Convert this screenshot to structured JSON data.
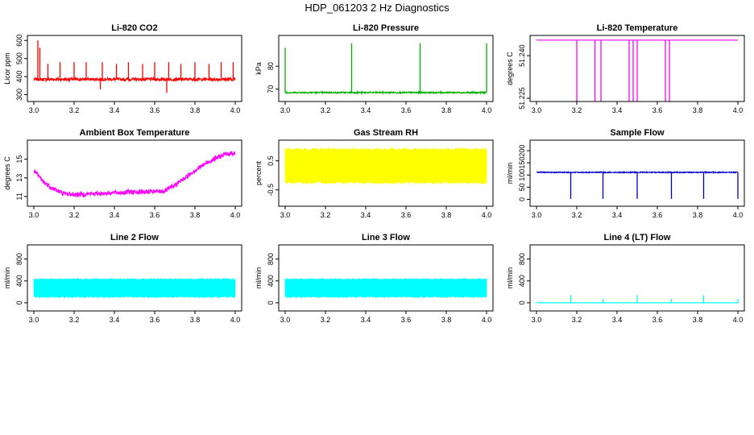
{
  "figure": {
    "title": "HDP_061203  2 Hz Diagnostics"
  },
  "chart_data": [
    {
      "id": "co2",
      "type": "line",
      "title": "Li-820 CO2",
      "ylabel": "Licor ppm",
      "color": "#ff0000",
      "xlim": [
        3.0,
        4.0
      ],
      "ylim": [
        280,
        610
      ],
      "xticks": [
        "3.0",
        "3.2",
        "3.4",
        "3.6",
        "3.8",
        "4.0"
      ],
      "yticks": [
        "300",
        "400",
        "500",
        "600"
      ],
      "baseline": 385,
      "noise": 8,
      "spikes": [
        [
          3.02,
          600
        ],
        [
          3.03,
          560
        ],
        [
          3.07,
          470
        ],
        [
          3.13,
          480
        ],
        [
          3.2,
          480
        ],
        [
          3.26,
          480
        ],
        [
          3.33,
          330
        ],
        [
          3.34,
          480
        ],
        [
          3.41,
          470
        ],
        [
          3.47,
          480
        ],
        [
          3.54,
          470
        ],
        [
          3.6,
          480
        ],
        [
          3.66,
          310
        ],
        [
          3.67,
          480
        ],
        [
          3.73,
          470
        ],
        [
          3.8,
          480
        ],
        [
          3.87,
          470
        ],
        [
          3.93,
          480
        ],
        [
          3.99,
          480
        ]
      ]
    },
    {
      "id": "pressure",
      "type": "line",
      "title": "Li-820 Pressure",
      "ylabel": "kPa",
      "color": "#00b000",
      "xlim": [
        3.0,
        4.0
      ],
      "ylim": [
        66,
        92
      ],
      "xticks": [
        "3.0",
        "3.2",
        "3.4",
        "3.6",
        "3.8",
        "4.0"
      ],
      "yticks": [
        "70",
        "80"
      ],
      "baseline": 68.5,
      "noise": 0.3,
      "spikes": [
        [
          3.0,
          88
        ],
        [
          3.33,
          90
        ],
        [
          3.67,
          90
        ],
        [
          4.0,
          90
        ]
      ]
    },
    {
      "id": "temperature",
      "type": "line",
      "title": "Li-820 Temperature",
      "ylabel": "degrees C",
      "color": "#ff00ff",
      "xlim": [
        3.0,
        4.0
      ],
      "ylim": [
        51.225,
        51.246
      ],
      "xticks": [
        "3.0",
        "3.2",
        "3.4",
        "3.6",
        "3.8",
        "4.0"
      ],
      "yticks": [
        "51.225",
        "51.240"
      ],
      "baseline": 51.2455,
      "noise": 0,
      "spikes": [
        [
          3.2,
          51.224
        ],
        [
          3.29,
          51.224
        ],
        [
          3.32,
          51.224
        ],
        [
          3.46,
          51.224
        ],
        [
          3.48,
          51.224
        ],
        [
          3.5,
          51.224
        ],
        [
          3.64,
          51.224
        ],
        [
          3.66,
          51.224
        ]
      ]
    },
    {
      "id": "ambient",
      "type": "line",
      "title": "Ambient Box Temperature",
      "ylabel": "degrees C",
      "color": "#ff00ff",
      "xlim": [
        3.0,
        4.0
      ],
      "ylim": [
        10.3,
        16.7
      ],
      "xticks": [
        "3.0",
        "3.2",
        "3.4",
        "3.6",
        "3.8",
        "4.0"
      ],
      "yticks": [
        "11",
        "13",
        "15"
      ],
      "profile": [
        [
          3.0,
          13.8
        ],
        [
          3.05,
          12.5
        ],
        [
          3.1,
          11.8
        ],
        [
          3.15,
          11.3
        ],
        [
          3.2,
          11.2
        ],
        [
          3.3,
          11.3
        ],
        [
          3.4,
          11.4
        ],
        [
          3.5,
          11.5
        ],
        [
          3.6,
          11.5
        ],
        [
          3.65,
          11.6
        ],
        [
          3.7,
          12.2
        ],
        [
          3.75,
          13.0
        ],
        [
          3.8,
          13.8
        ],
        [
          3.85,
          14.5
        ],
        [
          3.9,
          15.1
        ],
        [
          3.95,
          15.5
        ],
        [
          4.0,
          15.7
        ]
      ],
      "noise": 0.5
    },
    {
      "id": "rh",
      "type": "line",
      "title": "Gas Stream RH",
      "ylabel": "percent",
      "color": "#ffff00",
      "xlim": [
        3.0,
        4.0
      ],
      "ylim": [
        -0.95,
        1.1
      ],
      "xticks": [
        "3.0",
        "3.2",
        "3.4",
        "3.6",
        "3.8",
        "4.0"
      ],
      "yticks": [
        "-0.5",
        "0.5"
      ],
      "baseline": 0.35,
      "noise": 0.45,
      "band": [
        -0.3,
        0.95
      ]
    },
    {
      "id": "sample",
      "type": "line",
      "title": "Sample Flow",
      "ylabel": "ml/min",
      "color": "#0000cc",
      "xlim": [
        3.0,
        4.0
      ],
      "ylim": [
        -15,
        230
      ],
      "xticks": [
        "3.0",
        "3.2",
        "3.4",
        "3.6",
        "3.8",
        "4.0"
      ],
      "yticks": [
        "0",
        "50",
        "100",
        "150",
        "200"
      ],
      "baseline": 111,
      "noise": 2,
      "spikes": [
        [
          3.17,
          2
        ],
        [
          3.33,
          2
        ],
        [
          3.5,
          2
        ],
        [
          3.67,
          2
        ],
        [
          3.83,
          2
        ],
        [
          4.0,
          2
        ]
      ]
    },
    {
      "id": "line2",
      "type": "line",
      "title": "Line 2 Flow",
      "ylabel": "ml/min",
      "color": "#00ffff",
      "xlim": [
        3.0,
        4.0
      ],
      "ylim": [
        -90,
        1000
      ],
      "xticks": [
        "3.0",
        "3.2",
        "3.4",
        "3.6",
        "3.8",
        "4.0"
      ],
      "yticks": [
        "0",
        "400",
        "800"
      ],
      "band": [
        90,
        450
      ]
    },
    {
      "id": "line3",
      "type": "line",
      "title": "Line 3 Flow",
      "ylabel": "ml/min",
      "color": "#00ffff",
      "xlim": [
        3.0,
        4.0
      ],
      "ylim": [
        -90,
        1000
      ],
      "xticks": [
        "3.0",
        "3.2",
        "3.4",
        "3.6",
        "3.8",
        "4.0"
      ],
      "yticks": [
        "0",
        "400",
        "800"
      ],
      "band": [
        90,
        450
      ]
    },
    {
      "id": "line4",
      "type": "line",
      "title": "Line 4 (LT) Flow",
      "ylabel": "ml/min",
      "color": "#00ffff",
      "xlim": [
        3.0,
        4.0
      ],
      "ylim": [
        -90,
        1000
      ],
      "xticks": [
        "3.0",
        "3.2",
        "3.4",
        "3.6",
        "3.8",
        "4.0"
      ],
      "yticks": [
        "0",
        "400",
        "800"
      ],
      "baseline": 0,
      "noise": 0,
      "spikes": [
        [
          3.17,
          140
        ],
        [
          3.33,
          70
        ],
        [
          3.5,
          140
        ],
        [
          3.67,
          70
        ],
        [
          3.83,
          140
        ],
        [
          4.0,
          70
        ]
      ]
    }
  ]
}
